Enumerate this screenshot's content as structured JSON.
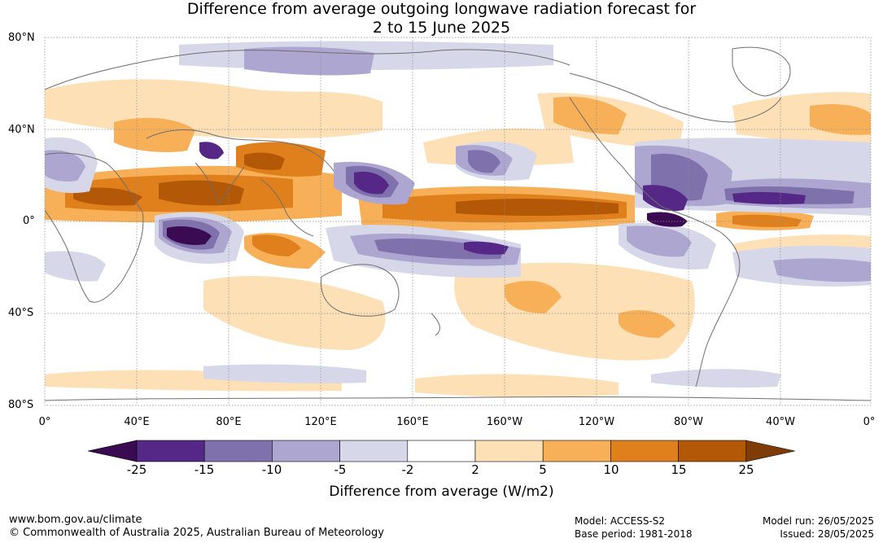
{
  "title": {
    "line1": "Difference from average outgoing longwave radiation forecast for",
    "line2": "2 to 15 June 2025"
  },
  "map": {
    "lat_labels": [
      "80°N",
      "40°N",
      "0°",
      "40°S",
      "80°S"
    ],
    "lon_labels": [
      "0°",
      "40°E",
      "80°E",
      "120°E",
      "160°E",
      "160°W",
      "120°W",
      "80°W",
      "40°W",
      "0°"
    ],
    "colors": {
      "ocean": "#ffffff",
      "coastline": "#6e6e6e",
      "grid": "#8c8c8c"
    }
  },
  "colorbar": {
    "ticks": [
      "-25",
      "-15",
      "-10",
      "-5",
      "-2",
      "2",
      "5",
      "10",
      "15",
      "25"
    ],
    "colors": [
      "#3a0a52",
      "#552888",
      "#7f71ab",
      "#ada6d0",
      "#d7d7ea",
      "#ffffff",
      "#fde0b6",
      "#f8b058",
      "#e0801c",
      "#b35806",
      "#7f3b08"
    ],
    "label": "Difference from average (W/m2)"
  },
  "footer": {
    "website": "www.bom.gov.au/climate",
    "copyright": "© Commonwealth of Australia 2025, Australian Bureau of Meteorology",
    "model": "Model: ACCESS-S2",
    "base_period": "Base period: 1981-2018",
    "model_run": "Model run: 26/05/2025",
    "issued": "Issued: 28/05/2025"
  }
}
